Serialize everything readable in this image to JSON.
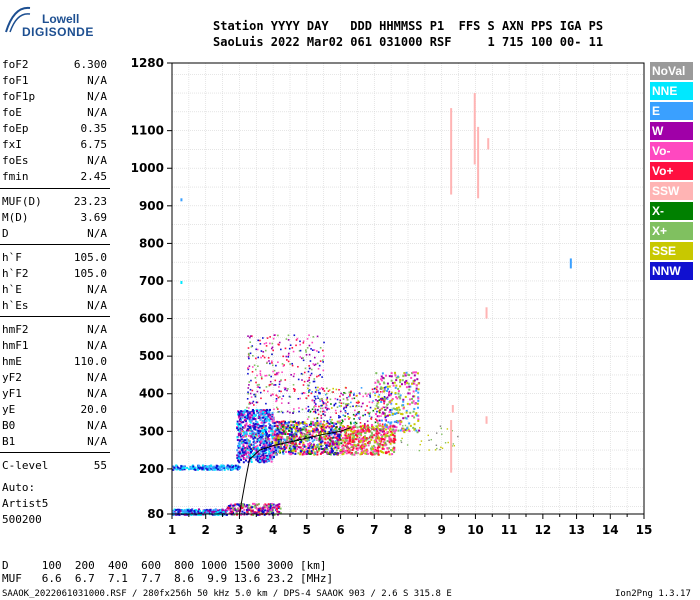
{
  "logo": {
    "line1": "Lowell",
    "line2": "DIGISONDE"
  },
  "header": {
    "line1": "Station YYYY DAY   DDD HHMMSS P1  FFS S AXN PPS IGA PS",
    "line2": "SaoLuis 2022 Mar02 061 031000 RSF     1 715 100 00- 11"
  },
  "params": [
    {
      "name": "foF2",
      "value": "6.300"
    },
    {
      "name": "foF1",
      "value": "N/A"
    },
    {
      "name": "foF1p",
      "value": "N/A"
    },
    {
      "name": "foE",
      "value": "N/A"
    },
    {
      "name": "foEp",
      "value": "0.35"
    },
    {
      "name": "fxI",
      "value": "6.75"
    },
    {
      "name": "foEs",
      "value": "N/A"
    },
    {
      "name": "fmin",
      "value": "2.45"
    },
    {
      "name": "MUF(D)",
      "value": "23.23"
    },
    {
      "name": "M(D)",
      "value": "3.69"
    },
    {
      "name": "D",
      "value": "N/A"
    },
    {
      "name": "h`F",
      "value": "105.0"
    },
    {
      "name": "h`F2",
      "value": "105.0"
    },
    {
      "name": "h`E",
      "value": "N/A"
    },
    {
      "name": "h`Es",
      "value": "N/A"
    },
    {
      "name": "hmF2",
      "value": "N/A"
    },
    {
      "name": "hmF1",
      "value": "N/A"
    },
    {
      "name": "hmE",
      "value": "110.0"
    },
    {
      "name": "yF2",
      "value": "N/A"
    },
    {
      "name": "yF1",
      "value": "N/A"
    },
    {
      "name": "yE",
      "value": "20.0"
    },
    {
      "name": "B0",
      "value": "N/A"
    },
    {
      "name": "B1",
      "value": "N/A"
    },
    {
      "name": "C-level",
      "value": "55"
    }
  ],
  "autoscaling": {
    "line1": "Auto:",
    "line2": "Artist5",
    "line3": "500200"
  },
  "legend": [
    {
      "label": "NoVal",
      "color": "#9a9a9a"
    },
    {
      "label": "NNE",
      "color": "#00e8ff"
    },
    {
      "label": "E",
      "color": "#3aa0ff"
    },
    {
      "label": "W",
      "color": "#a000a8"
    },
    {
      "label": "Vo-",
      "color": "#ff48c0"
    },
    {
      "label": "Vo+",
      "color": "#ff1040"
    },
    {
      "label": "SSW",
      "color": "#ffb4b4"
    },
    {
      "label": "X-",
      "color": "#008000"
    },
    {
      "label": "X+",
      "color": "#80c060"
    },
    {
      "label": "SSE",
      "color": "#c8c800"
    },
    {
      "label": "NNW",
      "color": "#1010d0"
    }
  ],
  "footer": {
    "d_line": "D     100  200  400  600  800 1000 1500 3000 [km]",
    "muf_line": "MUF   6.6  6.7  7.1  7.7  8.6  9.9 13.6 23.2 [MHz]",
    "info_line": "SAAOK_2022061031000.RSF / 280fx256h 50 kHz 5.0 km / DPS-4 SAAOK 903 / 2.6 S 315.8 E",
    "version": "Ion2Png 1.3.17"
  },
  "chart_data": {
    "type": "scatter",
    "x_axis": {
      "range": [
        1,
        15
      ],
      "ticks": [
        1,
        2,
        3,
        4,
        5,
        6,
        7,
        8,
        9,
        10,
        11,
        12,
        13,
        14,
        15
      ]
    },
    "y_axis": {
      "range": [
        80,
        1280
      ],
      "ticks": [
        80,
        200,
        300,
        400,
        500,
        600,
        700,
        800,
        900,
        1000,
        1100,
        1280
      ],
      "scale": "linear"
    },
    "grid": true,
    "trace": {
      "color": "#000000",
      "points": [
        [
          3.0,
          80
        ],
        [
          3.1,
          130
        ],
        [
          3.2,
          180
        ],
        [
          3.3,
          225
        ],
        [
          3.6,
          250
        ],
        [
          4.0,
          262
        ],
        [
          4.5,
          272
        ],
        [
          5.0,
          282
        ],
        [
          5.5,
          292
        ],
        [
          6.0,
          300
        ],
        [
          6.3,
          310
        ]
      ]
    }
  }
}
